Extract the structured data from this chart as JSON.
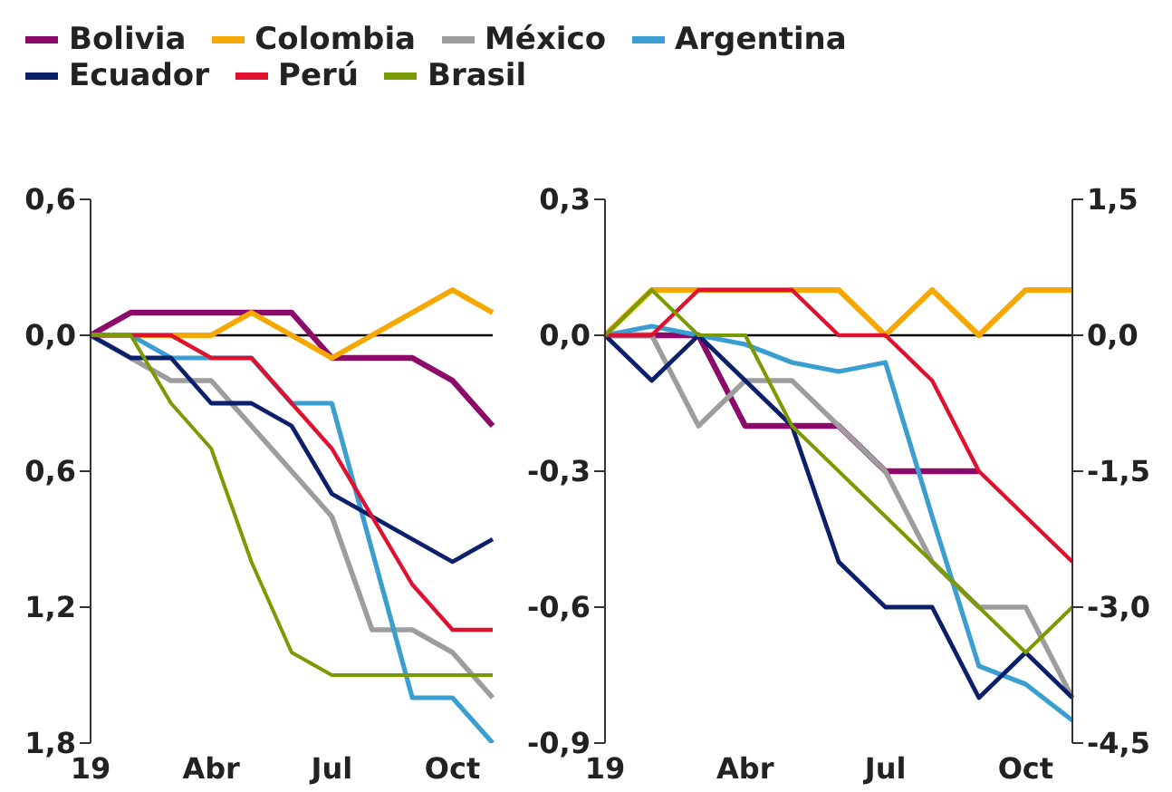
{
  "chart_data": [
    {
      "type": "line",
      "legend": "top",
      "categories": [
        "19",
        null,
        null,
        "Abr",
        null,
        null,
        "Jul",
        null,
        null,
        "Oct",
        null
      ],
      "ylim": [
        -1.8,
        0.6
      ],
      "yticks": [
        {
          "value": 0.6,
          "label": "0,6"
        },
        {
          "value": 0,
          "label": "0,0"
        },
        {
          "value": -0.6,
          "label": "0,6"
        },
        {
          "value": -1.2,
          "label": "1,2"
        },
        {
          "value": -1.8,
          "label": "1,8"
        }
      ],
      "ref_lines": [
        {
          "axis": "y",
          "value": 0,
          "color": "#000000"
        }
      ],
      "series": [
        {
          "name": "Bolivia",
          "color": "#8b0a6a",
          "values": [
            0,
            0.1,
            0.1,
            0.1,
            0.1,
            0.1,
            -0.1,
            -0.1,
            -0.1,
            -0.2,
            -0.4
          ]
        },
        {
          "name": "Colombia",
          "color": "#f5a800",
          "values": [
            0,
            0,
            0,
            0,
            0.1,
            0,
            -0.1,
            0,
            0.1,
            0.2,
            0.1
          ]
        },
        {
          "name": "México",
          "color": "#9d9d9d",
          "values": [
            0,
            -0.1,
            -0.2,
            -0.2,
            -0.4,
            -0.6,
            -0.8,
            -1.3,
            -1.3,
            -1.4,
            -1.6
          ]
        },
        {
          "name": "Argentina",
          "color": "#3a9fd0",
          "values": [
            0,
            0,
            -0.1,
            -0.1,
            -0.1,
            -0.3,
            -0.3,
            -0.95,
            -1.6,
            -1.6,
            -1.8
          ]
        },
        {
          "name": "Ecuador",
          "color": "#0b1f6b",
          "values": [
            0,
            -0.1,
            -0.1,
            -0.3,
            -0.3,
            -0.4,
            -0.7,
            -0.8,
            -0.9,
            -1.0,
            -0.9
          ]
        },
        {
          "name": "Perú",
          "color": "#e0102f",
          "values": [
            0,
            0,
            0,
            -0.1,
            -0.1,
            -0.3,
            -0.5,
            -0.8,
            -1.1,
            -1.3,
            -1.3
          ]
        },
        {
          "name": "Brasil",
          "color": "#7a9a01",
          "values": [
            0,
            0,
            -0.3,
            -0.5,
            -1.0,
            -1.4,
            -1.5,
            -1.5,
            -1.5,
            -1.5,
            -1.5
          ]
        }
      ]
    },
    {
      "type": "line",
      "categories": [
        "19",
        null,
        null,
        "Abr",
        null,
        null,
        "Jul",
        null,
        null,
        "Oct",
        null
      ],
      "ylim": [
        -0.9,
        0.3
      ],
      "yticks": [
        {
          "value": 0.3,
          "label": "0,3"
        },
        {
          "value": 0,
          "label": "0,0"
        },
        {
          "value": -0.3,
          "label": "-0,3"
        },
        {
          "value": -0.6,
          "label": "-0,6"
        },
        {
          "value": -0.9,
          "label": "-0,9"
        }
      ],
      "y2lim": [
        -4.5,
        1.5
      ],
      "y2ticks": [
        {
          "value": 1.5,
          "label": "1,5"
        },
        {
          "value": 0,
          "label": "0,0"
        },
        {
          "value": -1.5,
          "label": "-1,5"
        },
        {
          "value": -3,
          "label": "-3,0"
        },
        {
          "value": -4.5,
          "label": "-4,5"
        }
      ],
      "ref_lines": [
        {
          "axis": "y",
          "value": 0,
          "color": "#000000"
        }
      ],
      "series": [
        {
          "color": "#8b0a6a",
          "values": [
            0,
            0,
            0,
            -0.2,
            -0.2,
            -0.2,
            -0.3,
            -0.3,
            -0.3,
            null,
            null
          ]
        },
        {
          "color": "#f5a800",
          "values": [
            0,
            0.1,
            0.1,
            0.1,
            0.1,
            0.1,
            0,
            0.1,
            0,
            0.1,
            0.1
          ]
        },
        {
          "color": "#9d9d9d",
          "values": [
            0,
            0,
            -0.2,
            -0.1,
            -0.1,
            -0.2,
            -0.3,
            -0.5,
            -0.6,
            -0.6,
            -0.8
          ]
        },
        {
          "color": "#3a9fd0",
          "axis": "y2",
          "values": [
            0,
            0.1,
            0,
            -0.1,
            -0.3,
            -0.4,
            -0.3,
            -2.0,
            -3.65,
            -3.85,
            -4.25
          ]
        },
        {
          "color": "#0b1f6b",
          "values": [
            0,
            -0.1,
            0,
            -0.1,
            -0.2,
            -0.5,
            -0.6,
            -0.6,
            -0.8,
            -0.7,
            -0.8
          ]
        },
        {
          "color": "#e0102f",
          "values": [
            0,
            0,
            0.1,
            0.1,
            0.1,
            0,
            0,
            -0.1,
            -0.3,
            -0.4,
            -0.5
          ]
        },
        {
          "color": "#7a9a01",
          "values": [
            0,
            0.1,
            0,
            0,
            -0.2,
            -0.3,
            -0.4,
            -0.5,
            -0.6,
            -0.7,
            -0.6
          ]
        }
      ]
    }
  ]
}
